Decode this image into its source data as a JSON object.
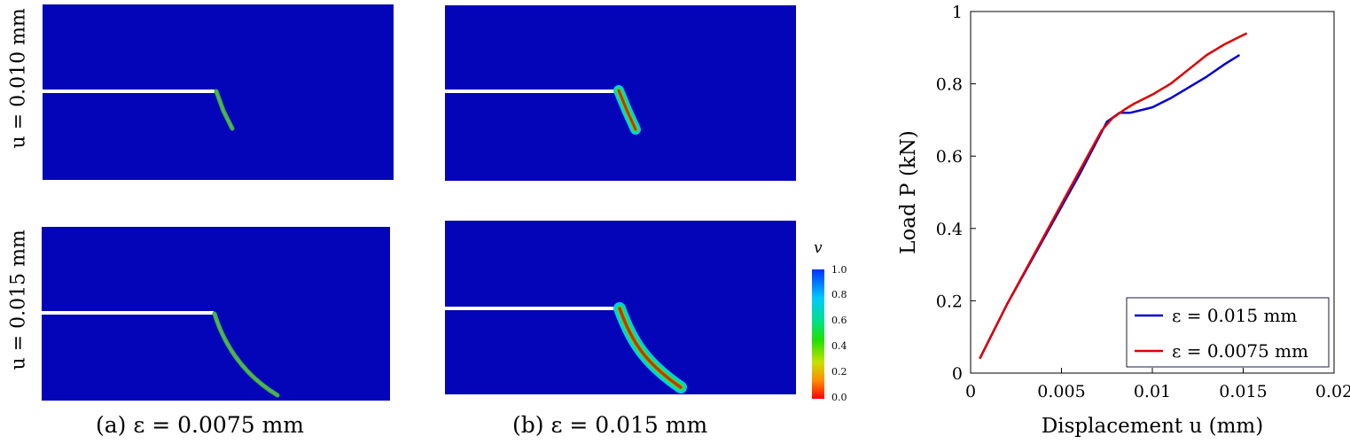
{
  "figure": {
    "row_labels": [
      "u = 0.010 mm",
      "u = 0.015 mm"
    ],
    "captions": [
      "(a) ε = 0.0075 mm",
      "(b) ε = 0.015 mm"
    ],
    "panels": [
      {
        "row": "u = 0.010 mm",
        "column": "(a)",
        "name": "a-top"
      },
      {
        "row": "u = 0.010 mm",
        "column": "(b)",
        "name": "b-top"
      },
      {
        "row": "u = 0.015 mm",
        "column": "(a)",
        "name": "a-bottom"
      },
      {
        "row": "u = 0.015 mm",
        "column": "(b)",
        "name": "b-bottom"
      }
    ],
    "colorbar": {
      "title": "v",
      "ticks": [
        "1.0",
        "0.8",
        "0.6",
        "0.4",
        "0.2",
        "0.0"
      ],
      "colors_top_to_bottom": [
        "#0033ff",
        "#00c8ff",
        "#00e08a",
        "#22e000",
        "#c8e000",
        "#ff8c00",
        "#ff0000"
      ]
    },
    "domain_color": "#0404b8",
    "notch_color": "#ffffff"
  },
  "chart_data": {
    "type": "line",
    "title": "",
    "xlabel": "Displacement u (mm)",
    "ylabel": "Load P (kN)",
    "xlim": [
      0,
      0.02
    ],
    "ylim": [
      0,
      1
    ],
    "xticks": [
      "0",
      "0.005",
      "0.01",
      "0.015",
      "0.02"
    ],
    "yticks": [
      "0",
      "0.2",
      "0.4",
      "0.6",
      "0.8",
      "1"
    ],
    "legend_position": "bottom-right",
    "series": [
      {
        "name": "ε = 0.015 mm",
        "color": "#0000cc",
        "x": [
          0.0005,
          0.002,
          0.004,
          0.006,
          0.0075,
          0.0082,
          0.0088,
          0.01,
          0.011,
          0.012,
          0.013,
          0.014,
          0.0148
        ],
        "y": [
          0.04,
          0.19,
          0.37,
          0.55,
          0.695,
          0.72,
          0.72,
          0.735,
          0.76,
          0.79,
          0.82,
          0.855,
          0.88
        ]
      },
      {
        "name": "ε = 0.0075 mm",
        "color": "#dd0000",
        "x": [
          0.0005,
          0.002,
          0.004,
          0.006,
          0.0072,
          0.0078,
          0.0085,
          0.009,
          0.01,
          0.011,
          0.012,
          0.013,
          0.014,
          0.0152
        ],
        "y": [
          0.04,
          0.19,
          0.375,
          0.56,
          0.67,
          0.705,
          0.73,
          0.745,
          0.77,
          0.8,
          0.84,
          0.88,
          0.91,
          0.94
        ]
      }
    ]
  }
}
